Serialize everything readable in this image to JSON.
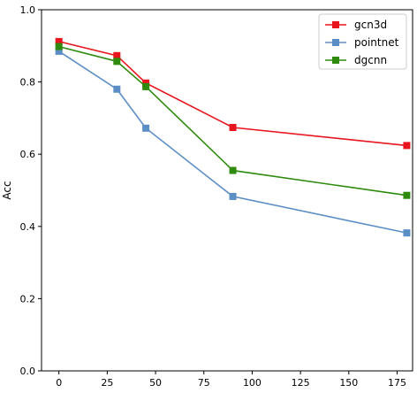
{
  "chart_data": {
    "type": "line",
    "title": "",
    "xlabel": "",
    "ylabel": "Acc",
    "x": [
      0,
      30,
      45,
      90,
      180
    ],
    "xlim": [
      -9,
      183
    ],
    "ylim": [
      0.0,
      1.0
    ],
    "xticks": [
      0,
      25,
      50,
      75,
      100,
      125,
      150,
      175
    ],
    "yticks": [
      0.0,
      0.2,
      0.4,
      0.6,
      0.8,
      1.0
    ],
    "xtick_labels": [
      "0",
      "25",
      "50",
      "75",
      "100",
      "125",
      "150",
      "175"
    ],
    "ytick_labels": [
      "0.0",
      "0.2",
      "0.4",
      "0.6",
      "0.8",
      "1.0"
    ],
    "grid": false,
    "legend_position": "top-right",
    "marker": "square",
    "series": [
      {
        "name": "gcn3d",
        "color": "#e8141e",
        "values": [
          0.912,
          0.873,
          0.797,
          0.674,
          0.624
        ]
      },
      {
        "name": "pointnet",
        "color": "#5b8ec5",
        "values": [
          0.885,
          0.78,
          0.672,
          0.483,
          0.382
        ]
      },
      {
        "name": "dgcnn",
        "color": "#2e8b0e",
        "values": [
          0.898,
          0.857,
          0.787,
          0.555,
          0.486
        ]
      }
    ]
  }
}
